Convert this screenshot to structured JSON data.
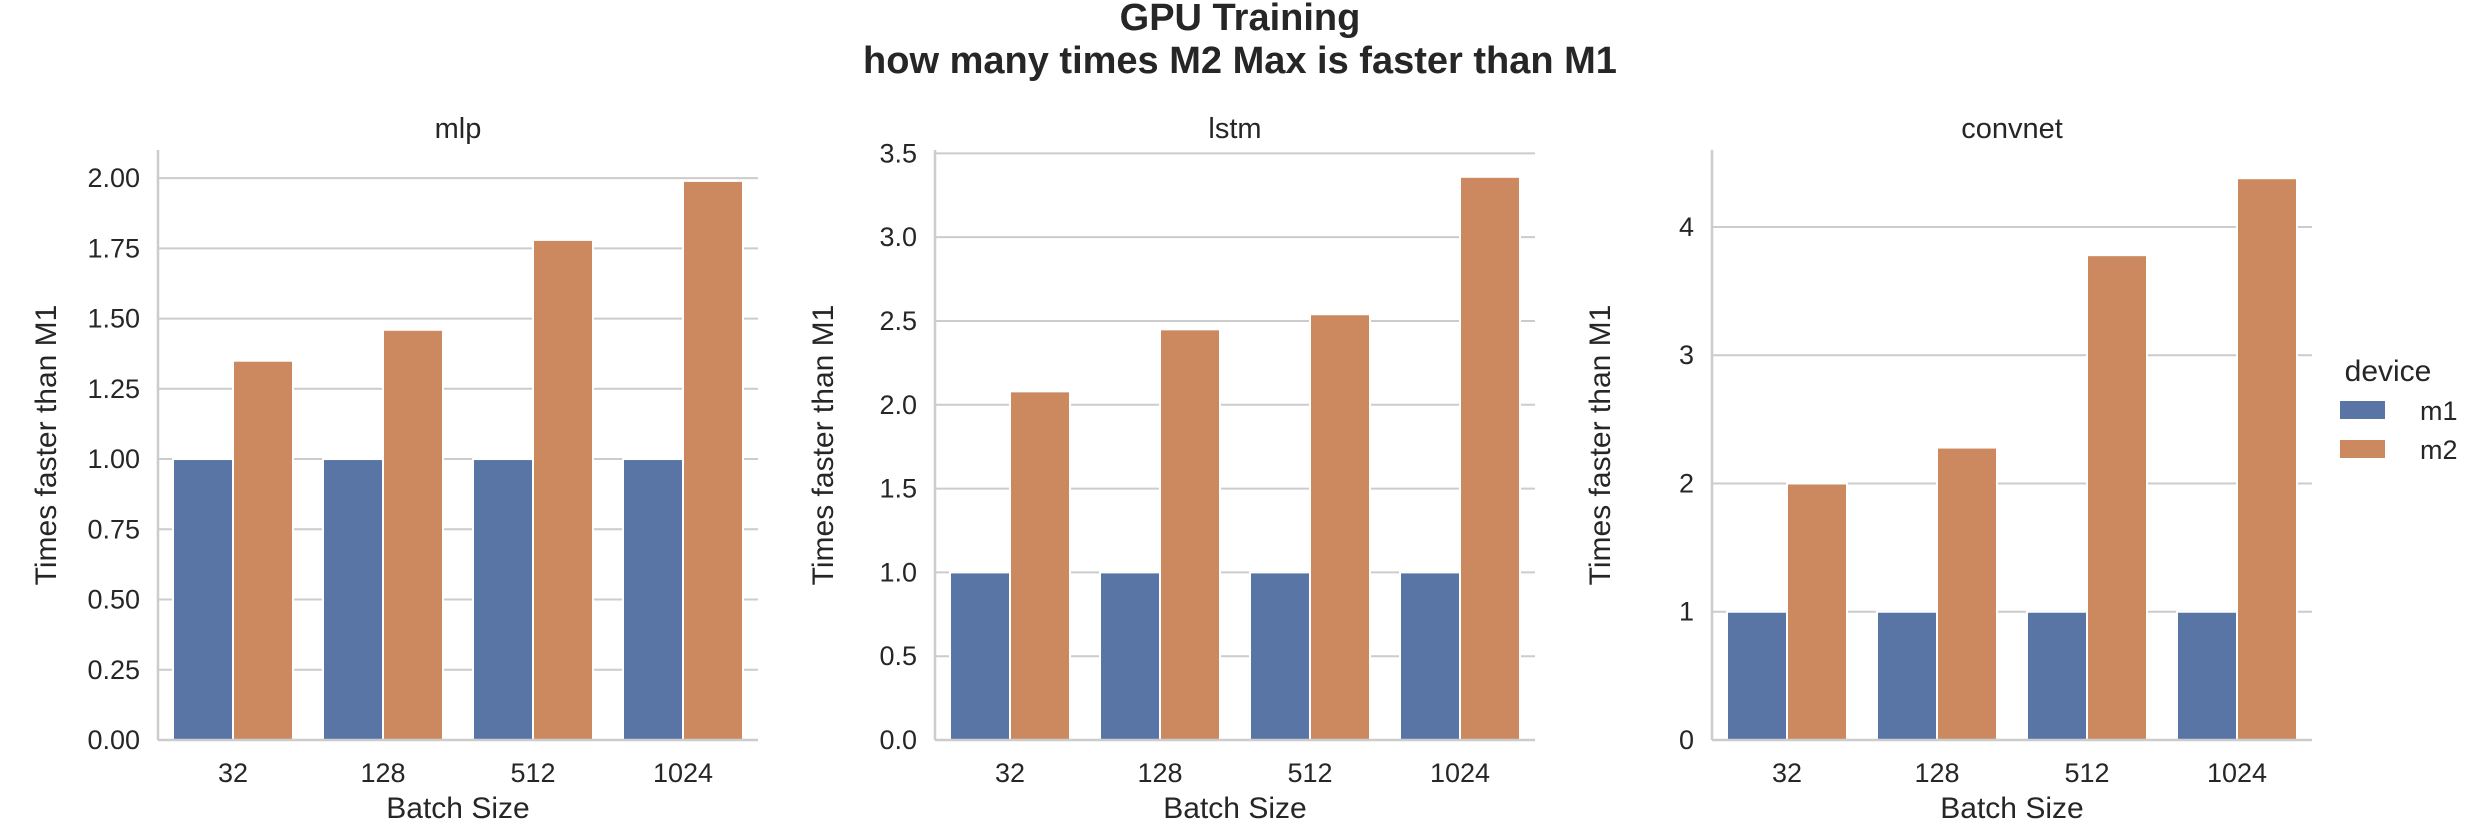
{
  "figure": {
    "title_line1": "GPU Training",
    "title_line2": "how many times M2 Max is faster than M1"
  },
  "colors": {
    "m1": "#5875a6",
    "m2": "#cc885f",
    "grid": "#cccccc",
    "spine": "#cccccc",
    "text": "#262626"
  },
  "legend": {
    "title": "device",
    "entries": [
      "m1",
      "m2"
    ],
    "placement": "right"
  },
  "chart_data": [
    {
      "type": "bar",
      "title": "mlp",
      "xlabel": "Batch Size",
      "ylabel": "Times faster than M1",
      "categories": [
        "32",
        "128",
        "512",
        "1024"
      ],
      "ylim": [
        0,
        2.1
      ],
      "yticks": [
        0.0,
        0.25,
        0.5,
        0.75,
        1.0,
        1.25,
        1.5,
        1.75,
        2.0
      ],
      "ytick_labels": [
        "0.00",
        "0.25",
        "0.50",
        "0.75",
        "1.00",
        "1.25",
        "1.50",
        "1.75",
        "2.00"
      ],
      "grid": true,
      "series": [
        {
          "name": "m1",
          "values": [
            1.0,
            1.0,
            1.0,
            1.0
          ]
        },
        {
          "name": "m2",
          "values": [
            1.35,
            1.46,
            1.78,
            1.99
          ]
        }
      ]
    },
    {
      "type": "bar",
      "title": "lstm",
      "xlabel": "Batch Size",
      "ylabel": "Times faster than M1",
      "categories": [
        "32",
        "128",
        "512",
        "1024"
      ],
      "ylim": [
        0,
        3.52
      ],
      "yticks": [
        0.0,
        0.5,
        1.0,
        1.5,
        2.0,
        2.5,
        3.0,
        3.5
      ],
      "ytick_labels": [
        "0.0",
        "0.5",
        "1.0",
        "1.5",
        "2.0",
        "2.5",
        "3.0",
        "3.5"
      ],
      "grid": true,
      "series": [
        {
          "name": "m1",
          "values": [
            1.0,
            1.0,
            1.0,
            1.0
          ]
        },
        {
          "name": "m2",
          "values": [
            2.08,
            2.45,
            2.54,
            3.36
          ]
        }
      ]
    },
    {
      "type": "bar",
      "title": "convnet",
      "xlabel": "Batch Size",
      "ylabel": "Times faster than M1",
      "categories": [
        "32",
        "128",
        "512",
        "1024"
      ],
      "ylim": [
        0,
        4.6
      ],
      "yticks": [
        0,
        1,
        2,
        3,
        4
      ],
      "ytick_labels": [
        "0",
        "1",
        "2",
        "3",
        "4"
      ],
      "grid": true,
      "series": [
        {
          "name": "m1",
          "values": [
            1.0,
            1.0,
            1.0,
            1.0
          ]
        },
        {
          "name": "m2",
          "values": [
            2.0,
            2.28,
            3.78,
            4.38
          ]
        }
      ]
    }
  ]
}
